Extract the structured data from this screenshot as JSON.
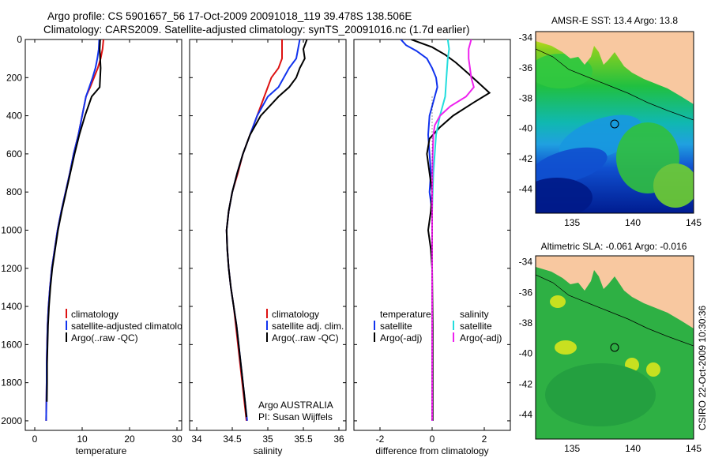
{
  "header": {
    "line1": "Argo profile: CS 5901657_56 17-Oct-2009 20091018_119 39.478S 138.506E",
    "line2": "Climatology: CARS2009. Satellite-adjusted climatology: synTS_20091016.nc (1.7d earlier)"
  },
  "side_label": "CSIRO 22-Oct-2009 10:30:36",
  "colors": {
    "climatology": "#dd1111",
    "satellite": "#1133ee",
    "argo": "#000000",
    "salinity_satellite": "#22dddd",
    "salinity_argo": "#ee22ee",
    "land": "#f8c8a0"
  },
  "chart_data": [
    {
      "type": "line",
      "panel": "temperature",
      "xlabel": "temperature",
      "ylabel": "",
      "xlim": [
        -2,
        31
      ],
      "ylim": [
        0,
        2050
      ],
      "y_inverted": true,
      "xticks": [
        0,
        10,
        20,
        30
      ],
      "yticks": [
        0,
        200,
        400,
        600,
        800,
        1000,
        1200,
        1400,
        1600,
        1800,
        2000
      ],
      "legend": {
        "position": "lower-right",
        "entries": [
          "climatology",
          "satellite-adjusted climatology",
          "Argo(..raw -QC)"
        ]
      },
      "series": [
        {
          "name": "climatology",
          "color": "#dd1111",
          "points": [
            [
              14.5,
              0
            ],
            [
              14.3,
              50
            ],
            [
              13.9,
              100
            ],
            [
              13.3,
              150
            ],
            [
              12.5,
              200
            ],
            [
              11.7,
              250
            ],
            [
              10.8,
              300
            ],
            [
              10.0,
              400
            ],
            [
              9.2,
              500
            ],
            [
              8.2,
              600
            ],
            [
              7.4,
              700
            ],
            [
              6.5,
              800
            ],
            [
              5.6,
              900
            ],
            [
              4.8,
              1000
            ],
            [
              4.2,
              1100
            ],
            [
              3.6,
              1200
            ],
            [
              3.2,
              1300
            ],
            [
              2.9,
              1400
            ],
            [
              2.7,
              1500
            ],
            [
              2.6,
              1600
            ],
            [
              2.5,
              1700
            ],
            [
              2.5,
              1800
            ],
            [
              2.45,
              1900
            ],
            [
              2.4,
              2000
            ]
          ]
        },
        {
          "name": "satellite-adjusted climatology",
          "color": "#1133ee",
          "points": [
            [
              13.6,
              0
            ],
            [
              13.5,
              50
            ],
            [
              13.2,
              100
            ],
            [
              12.8,
              150
            ],
            [
              12.2,
              200
            ],
            [
              11.5,
              250
            ],
            [
              10.8,
              300
            ],
            [
              10.0,
              400
            ],
            [
              9.2,
              500
            ],
            [
              8.2,
              600
            ],
            [
              7.4,
              700
            ],
            [
              6.5,
              800
            ],
            [
              5.6,
              900
            ],
            [
              4.8,
              1000
            ],
            [
              4.2,
              1100
            ],
            [
              3.6,
              1200
            ],
            [
              3.2,
              1300
            ],
            [
              2.9,
              1400
            ],
            [
              2.7,
              1500
            ],
            [
              2.6,
              1600
            ],
            [
              2.5,
              1700
            ],
            [
              2.5,
              1800
            ],
            [
              2.45,
              1900
            ],
            [
              2.4,
              2000
            ]
          ]
        },
        {
          "name": "Argo(..raw -QC)",
          "color": "#000000",
          "points": [
            [
              13.8,
              0
            ],
            [
              13.7,
              50
            ],
            [
              13.8,
              100
            ],
            [
              13.9,
              150
            ],
            [
              13.8,
              200
            ],
            [
              13.7,
              250
            ],
            [
              12.0,
              300
            ],
            [
              10.6,
              400
            ],
            [
              9.4,
              500
            ],
            [
              8.4,
              600
            ],
            [
              7.5,
              700
            ],
            [
              6.6,
              800
            ],
            [
              5.7,
              900
            ],
            [
              4.9,
              1000
            ],
            [
              4.3,
              1100
            ],
            [
              3.7,
              1200
            ],
            [
              3.3,
              1300
            ],
            [
              3.0,
              1400
            ],
            [
              2.8,
              1500
            ],
            [
              2.7,
              1600
            ],
            [
              2.6,
              1700
            ],
            [
              2.6,
              1800
            ],
            [
              2.55,
              1900
            ]
          ]
        }
      ]
    },
    {
      "type": "line",
      "panel": "salinity",
      "xlabel": "salinity",
      "ylabel": "",
      "xlim": [
        33.9,
        36.1
      ],
      "ylim": [
        0,
        2050
      ],
      "y_inverted": true,
      "xticks": [
        34,
        34.5,
        35,
        35.5,
        36
      ],
      "legend": {
        "position": "lower-right",
        "entries": [
          "climatology",
          "satellite adj. clim.",
          "Argo(..raw -QC)"
        ]
      },
      "annotation": [
        "Argo AUSTRALIA",
        "PI: Susan Wijffels"
      ],
      "series": [
        {
          "name": "climatology",
          "color": "#dd1111",
          "points": [
            [
              35.2,
              0
            ],
            [
              35.2,
              100
            ],
            [
              35.15,
              150
            ],
            [
              35.05,
              200
            ],
            [
              34.95,
              300
            ],
            [
              34.85,
              400
            ],
            [
              34.75,
              500
            ],
            [
              34.65,
              600
            ],
            [
              34.58,
              700
            ],
            [
              34.5,
              800
            ],
            [
              34.45,
              900
            ],
            [
              34.42,
              1000
            ],
            [
              34.43,
              1100
            ],
            [
              34.45,
              1200
            ],
            [
              34.48,
              1300
            ],
            [
              34.52,
              1400
            ],
            [
              34.55,
              1500
            ],
            [
              34.58,
              1600
            ],
            [
              34.61,
              1700
            ],
            [
              34.64,
              1800
            ],
            [
              34.67,
              1900
            ],
            [
              34.7,
              2000
            ]
          ]
        },
        {
          "name": "satellite adj. clim.",
          "color": "#1133ee",
          "points": [
            [
              35.45,
              0
            ],
            [
              35.4,
              100
            ],
            [
              35.3,
              150
            ],
            [
              35.15,
              250
            ],
            [
              35.0,
              300
            ],
            [
              34.85,
              400
            ],
            [
              34.75,
              500
            ],
            [
              34.65,
              600
            ],
            [
              34.57,
              700
            ],
            [
              34.5,
              800
            ],
            [
              34.45,
              900
            ],
            [
              34.42,
              1000
            ],
            [
              34.43,
              1100
            ],
            [
              34.45,
              1200
            ],
            [
              34.48,
              1300
            ],
            [
              34.52,
              1400
            ],
            [
              34.56,
              1500
            ],
            [
              34.59,
              1600
            ],
            [
              34.62,
              1700
            ],
            [
              34.65,
              1800
            ],
            [
              34.68,
              1900
            ],
            [
              34.71,
              2000
            ]
          ]
        },
        {
          "name": "Argo(..raw -QC)",
          "color": "#000000",
          "points": [
            [
              35.55,
              0
            ],
            [
              35.5,
              50
            ],
            [
              35.52,
              100
            ],
            [
              35.45,
              150
            ],
            [
              35.4,
              200
            ],
            [
              35.3,
              250
            ],
            [
              35.15,
              300
            ],
            [
              34.9,
              400
            ],
            [
              34.75,
              500
            ],
            [
              34.65,
              600
            ],
            [
              34.57,
              700
            ],
            [
              34.5,
              800
            ],
            [
              34.45,
              900
            ],
            [
              34.42,
              1000
            ],
            [
              34.43,
              1100
            ],
            [
              34.45,
              1200
            ],
            [
              34.48,
              1300
            ],
            [
              34.52,
              1400
            ],
            [
              34.56,
              1500
            ],
            [
              34.59,
              1600
            ],
            [
              34.62,
              1700
            ],
            [
              34.65,
              1800
            ],
            [
              34.68,
              1900
            ],
            [
              34.7,
              1980
            ]
          ]
        }
      ]
    },
    {
      "type": "line",
      "panel": "difference",
      "xlabel": "difference from climatology",
      "ylabel": "",
      "xlim": [
        -3,
        3
      ],
      "ylim": [
        0,
        2050
      ],
      "y_inverted": true,
      "xticks": [
        -2,
        0,
        2
      ],
      "legend": {
        "position": "lower-center",
        "groups": [
          {
            "title": "temperature",
            "entries": [
              "satellite",
              "Argo(-adj)"
            ]
          },
          {
            "title": "salinity",
            "entries": [
              "satellite",
              "Argo(-adj)"
            ]
          }
        ]
      },
      "series": [
        {
          "name": "temperature satellite",
          "color": "#1133ee",
          "points": [
            [
              -1.2,
              0
            ],
            [
              -1.0,
              30
            ],
            [
              -0.6,
              60
            ],
            [
              -0.2,
              100
            ],
            [
              0.0,
              150
            ],
            [
              0.15,
              200
            ],
            [
              0.2,
              250
            ],
            [
              0.1,
              300
            ],
            [
              0.0,
              350
            ],
            [
              -0.1,
              400
            ],
            [
              -0.15,
              500
            ],
            [
              -0.1,
              600
            ],
            [
              -0.05,
              700
            ],
            [
              -0.1,
              800
            ],
            [
              0.0,
              900
            ],
            [
              0.0,
              1000
            ],
            [
              0.0,
              1200
            ],
            [
              0.0,
              1500
            ],
            [
              0.0,
              2000
            ]
          ]
        },
        {
          "name": "temperature Argo(-adj)",
          "color": "#000000",
          "points": [
            [
              -0.8,
              0
            ],
            [
              0.0,
              40
            ],
            [
              0.5,
              80
            ],
            [
              0.9,
              120
            ],
            [
              1.4,
              180
            ],
            [
              1.8,
              230
            ],
            [
              2.2,
              280
            ],
            [
              1.6,
              330
            ],
            [
              0.8,
              400
            ],
            [
              0.3,
              460
            ],
            [
              -0.1,
              520
            ],
            [
              -0.2,
              600
            ],
            [
              -0.1,
              700
            ],
            [
              0.0,
              800
            ],
            [
              -0.05,
              900
            ],
            [
              -0.15,
              1000
            ],
            [
              -0.05,
              1100
            ],
            [
              0.0,
              1200
            ],
            [
              0.02,
              1500
            ],
            [
              0.02,
              2000
            ]
          ]
        },
        {
          "name": "salinity satellite",
          "color": "#22dddd",
          "points": [
            [
              0.6,
              0
            ],
            [
              0.65,
              50
            ],
            [
              0.6,
              100
            ],
            [
              0.55,
              200
            ],
            [
              0.5,
              300
            ],
            [
              0.3,
              400
            ],
            [
              0.15,
              500
            ],
            [
              0.1,
              600
            ],
            [
              0.05,
              700
            ],
            [
              0.02,
              800
            ],
            [
              0.0,
              900
            ],
            [
              0.0,
              1000
            ],
            [
              0.0,
              1200
            ],
            [
              0.0,
              1500
            ],
            [
              0.0,
              2000
            ]
          ]
        },
        {
          "name": "salinity Argo(-adj)",
          "color": "#ee22ee",
          "points": [
            [
              1.5,
              0
            ],
            [
              1.4,
              50
            ],
            [
              1.4,
              100
            ],
            [
              1.45,
              150
            ],
            [
              1.5,
              200
            ],
            [
              1.6,
              250
            ],
            [
              1.3,
              300
            ],
            [
              0.7,
              350
            ],
            [
              0.3,
              400
            ],
            [
              0.1,
              450
            ],
            [
              0.05,
              500
            ],
            [
              0.02,
              600
            ],
            [
              0.0,
              800
            ],
            [
              0.0,
              1000
            ],
            [
              0.0,
              1500
            ],
            [
              0.0,
              2000
            ]
          ]
        }
      ]
    }
  ],
  "maps": [
    {
      "title": "AMSR-E SST: 13.4 Argo: 13.8",
      "xlim": [
        132,
        145
      ],
      "ylim": [
        -45.6,
        -33.6
      ],
      "xticks": [
        135,
        140,
        145
      ],
      "yticks": [
        -34,
        -36,
        -38,
        -40,
        -42,
        -44
      ],
      "marker": {
        "lon": 138.5,
        "lat": -39.5
      }
    },
    {
      "title": "Altimetric SLA: -0.061 Argo: -0.016",
      "xlim": [
        132,
        145
      ],
      "ylim": [
        -45.6,
        -33.6
      ],
      "xticks": [
        135,
        140,
        145
      ],
      "yticks": [
        -34,
        -36,
        -38,
        -40,
        -42,
        -44
      ],
      "marker": {
        "lon": 138.5,
        "lat": -39.5
      }
    }
  ]
}
